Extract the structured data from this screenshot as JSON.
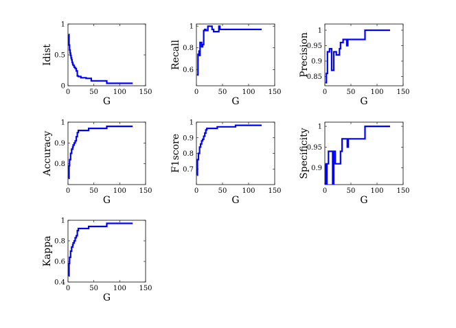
{
  "chart_data": [
    {
      "type": "line",
      "xlabel": "G",
      "ylabel": "Idist",
      "xlim": [
        0,
        150
      ],
      "ylim": [
        0,
        1
      ],
      "xticks": [
        0,
        50,
        100,
        150
      ],
      "yticks": [
        0,
        0.5,
        1
      ],
      "ytick_labels": [
        "0",
        "0.5",
        "1"
      ],
      "color": "#0000ff",
      "series": [
        {
          "x": [
            1,
            2,
            3,
            4,
            5,
            6,
            7,
            8,
            9,
            10,
            12,
            14,
            16,
            18,
            20,
            25,
            30,
            35,
            40,
            45,
            50,
            60,
            70,
            75,
            80,
            90,
            100,
            110,
            125
          ],
          "y": [
            0.83,
            0.66,
            0.58,
            0.53,
            0.49,
            0.45,
            0.42,
            0.38,
            0.35,
            0.33,
            0.3,
            0.28,
            0.24,
            0.16,
            0.15,
            0.13,
            0.13,
            0.12,
            0.12,
            0.08,
            0.08,
            0.08,
            0.08,
            0.04,
            0.04,
            0.04,
            0.04,
            0.04,
            0.04
          ]
        }
      ]
    },
    {
      "type": "line",
      "xlabel": "G",
      "ylabel": "Recall",
      "xlim": [
        0,
        150
      ],
      "ylim": [
        0.45,
        1.02
      ],
      "xticks": [
        0,
        50,
        100,
        150
      ],
      "yticks": [
        0.6,
        0.8,
        1
      ],
      "ytick_labels": [
        "0.6",
        "0.8",
        "1"
      ],
      "color": "#0000ff",
      "series": [
        {
          "x": [
            1,
            3,
            5,
            6,
            7,
            9,
            10,
            12,
            14,
            16,
            18,
            20,
            22,
            25,
            30,
            33,
            35,
            40,
            43,
            45,
            50,
            60,
            80,
            100,
            125
          ],
          "y": [
            0.55,
            0.74,
            0.77,
            0.73,
            0.85,
            0.85,
            0.81,
            0.83,
            0.96,
            0.97,
            0.96,
            0.96,
            1.0,
            1.0,
            0.97,
            0.95,
            0.95,
            0.95,
            1.0,
            0.97,
            0.97,
            0.97,
            0.97,
            0.97,
            0.97
          ]
        }
      ]
    },
    {
      "type": "line",
      "xlabel": "G",
      "ylabel": "Precision",
      "xlim": [
        0,
        150
      ],
      "ylim": [
        0.82,
        1.02
      ],
      "xticks": [
        0,
        50,
        100,
        150
      ],
      "yticks": [
        0.85,
        0.9,
        0.95,
        1
      ],
      "ytick_labels": [
        "0.85",
        "0.9",
        "0.95",
        "1"
      ],
      "color": "#0000ff",
      "series": [
        {
          "x": [
            1,
            3,
            5,
            7,
            9,
            11,
            13,
            15,
            17,
            20,
            22,
            25,
            28,
            30,
            35,
            40,
            42,
            44,
            50,
            60,
            70,
            75,
            77,
            80,
            90,
            100,
            125
          ],
          "y": [
            0.83,
            0.86,
            0.93,
            0.93,
            0.94,
            0.94,
            0.87,
            0.87,
            0.93,
            0.93,
            0.92,
            0.92,
            0.94,
            0.96,
            0.97,
            0.97,
            0.95,
            0.97,
            0.97,
            0.97,
            0.97,
            0.97,
            1.0,
            1.0,
            1.0,
            1.0,
            1.0
          ]
        }
      ]
    },
    {
      "type": "line",
      "xlabel": "G",
      "ylabel": "Accuracy",
      "xlim": [
        0,
        150
      ],
      "ylim": [
        0.7,
        1.0
      ],
      "xticks": [
        0,
        50,
        100,
        150
      ],
      "yticks": [
        0.8,
        0.9,
        1
      ],
      "ytick_labels": [
        "0.8",
        "0.9",
        "1"
      ],
      "color": "#0000ff",
      "series": [
        {
          "x": [
            1,
            2,
            3,
            5,
            7,
            9,
            10,
            12,
            14,
            16,
            18,
            20,
            25,
            30,
            35,
            40,
            45,
            50,
            60,
            70,
            75,
            80,
            90,
            100,
            125
          ],
          "y": [
            0.73,
            0.79,
            0.82,
            0.85,
            0.87,
            0.88,
            0.89,
            0.9,
            0.91,
            0.93,
            0.95,
            0.96,
            0.96,
            0.96,
            0.96,
            0.97,
            0.97,
            0.97,
            0.97,
            0.97,
            0.98,
            0.98,
            0.98,
            0.98,
            0.98
          ]
        }
      ]
    },
    {
      "type": "line",
      "xlabel": "G",
      "ylabel": "F1score",
      "xlim": [
        0,
        150
      ],
      "ylim": [
        0.6,
        1.0
      ],
      "xticks": [
        0,
        50,
        100,
        150
      ],
      "yticks": [
        0.7,
        0.8,
        0.9,
        1
      ],
      "ytick_labels": [
        "0.7",
        "0.8",
        "0.9",
        "1"
      ],
      "color": "#0000ff",
      "series": [
        {
          "x": [
            1,
            2,
            4,
            6,
            8,
            10,
            12,
            14,
            16,
            18,
            20,
            25,
            30,
            35,
            40,
            45,
            50,
            60,
            70,
            75,
            80,
            90,
            100,
            125
          ],
          "y": [
            0.66,
            0.76,
            0.8,
            0.84,
            0.86,
            0.88,
            0.89,
            0.91,
            0.93,
            0.95,
            0.96,
            0.96,
            0.96,
            0.96,
            0.97,
            0.97,
            0.97,
            0.97,
            0.97,
            0.98,
            0.98,
            0.98,
            0.98,
            0.98
          ]
        }
      ]
    },
    {
      "type": "line",
      "xlabel": "G",
      "ylabel": "Specificity",
      "xlim": [
        0,
        150
      ],
      "ylim": [
        0.86,
        1.01
      ],
      "xticks": [
        0,
        50,
        100,
        150
      ],
      "yticks": [
        0.9,
        0.95,
        1
      ],
      "ytick_labels": [
        "0.9",
        "0.95",
        "1"
      ],
      "color": "#0000ff",
      "series": [
        {
          "x": [
            1,
            2,
            3,
            4,
            5,
            7,
            9,
            12,
            14,
            15,
            16,
            17,
            18,
            20,
            24,
            27,
            30,
            33,
            35,
            40,
            43,
            45,
            50,
            60,
            70,
            75,
            77,
            80,
            90,
            100,
            125
          ],
          "y": [
            0.91,
            0.86,
            0.86,
            0.91,
            0.91,
            0.94,
            0.94,
            0.94,
            0.94,
            0.86,
            0.86,
            0.94,
            0.94,
            0.91,
            0.91,
            0.91,
            0.94,
            0.97,
            0.97,
            0.97,
            0.95,
            0.97,
            0.97,
            0.97,
            0.97,
            0.97,
            1.0,
            1.0,
            1.0,
            1.0,
            1.0
          ]
        }
      ]
    },
    {
      "type": "line",
      "xlabel": "G",
      "ylabel": "Kappa",
      "xlim": [
        0,
        150
      ],
      "ylim": [
        0.4,
        1.0
      ],
      "xticks": [
        0,
        50,
        100,
        150
      ],
      "yticks": [
        0.4,
        0.6,
        0.8,
        1
      ],
      "ytick_labels": [
        "0.4",
        "0.6",
        "0.8",
        "1"
      ],
      "color": "#0000ff",
      "series": [
        {
          "x": [
            1,
            2,
            3,
            5,
            7,
            9,
            10,
            12,
            14,
            16,
            18,
            20,
            25,
            30,
            35,
            40,
            45,
            50,
            60,
            70,
            75,
            80,
            90,
            100,
            125
          ],
          "y": [
            0.46,
            0.58,
            0.64,
            0.7,
            0.74,
            0.76,
            0.78,
            0.8,
            0.83,
            0.85,
            0.9,
            0.92,
            0.92,
            0.92,
            0.92,
            0.94,
            0.94,
            0.94,
            0.94,
            0.94,
            0.97,
            0.97,
            0.97,
            0.97,
            0.97
          ]
        }
      ]
    }
  ]
}
